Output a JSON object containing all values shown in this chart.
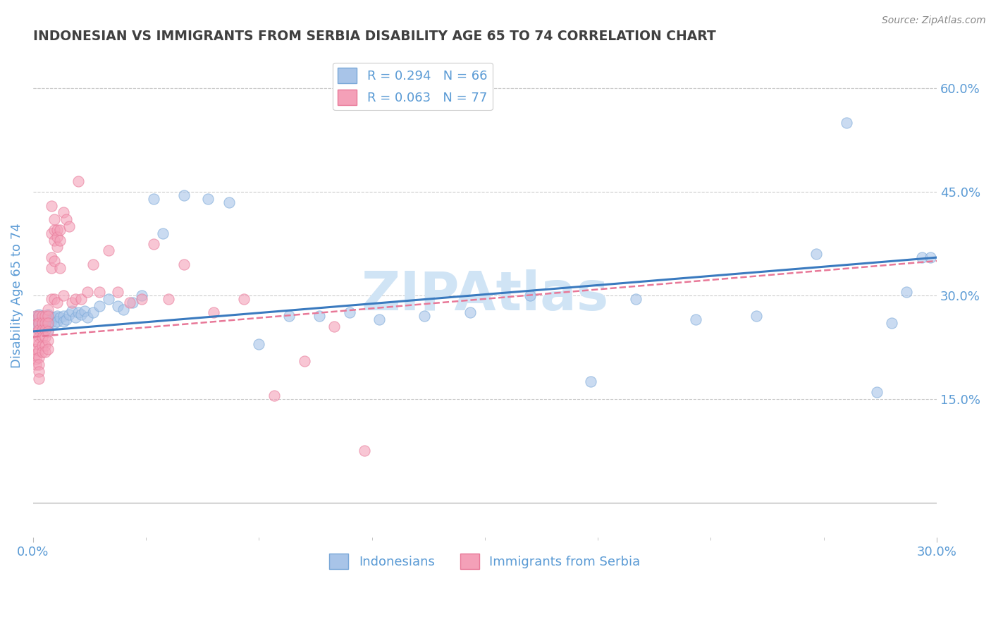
{
  "title": "INDONESIAN VS IMMIGRANTS FROM SERBIA DISABILITY AGE 65 TO 74 CORRELATION CHART",
  "source_text": "Source: ZipAtlas.com",
  "ylabel": "Disability Age 65 to 74",
  "xlim": [
    0.0,
    0.3
  ],
  "ylim": [
    -0.05,
    0.65
  ],
  "ytick_labels_right": [
    "15.0%",
    "30.0%",
    "45.0%",
    "60.0%"
  ],
  "ytick_positions_right": [
    0.15,
    0.3,
    0.45,
    0.6
  ],
  "legend1_label": "R = 0.294   N = 66",
  "legend2_label": "R = 0.063   N = 77",
  "legend_bottom_label1": "Indonesians",
  "legend_bottom_label2": "Immigrants from Serbia",
  "blue_color": "#a8c4e8",
  "pink_color": "#f4a0b8",
  "blue_edge_color": "#7aa8d8",
  "pink_edge_color": "#e87898",
  "blue_line_color": "#3a7abf",
  "pink_line_color": "#e87898",
  "title_color": "#404040",
  "axis_color": "#bbbbbb",
  "text_color": "#5b9bd5",
  "watermark_color": "#d0e4f5",
  "watermark_fontsize": 55,
  "background_color": "#ffffff",
  "grid_color": "#cccccc",
  "indonesian_x": [
    0.001,
    0.001,
    0.001,
    0.002,
    0.002,
    0.002,
    0.002,
    0.003,
    0.003,
    0.003,
    0.003,
    0.004,
    0.004,
    0.004,
    0.005,
    0.005,
    0.005,
    0.005,
    0.006,
    0.006,
    0.007,
    0.007,
    0.008,
    0.008,
    0.009,
    0.01,
    0.01,
    0.011,
    0.012,
    0.013,
    0.014,
    0.015,
    0.016,
    0.017,
    0.018,
    0.02,
    0.022,
    0.025,
    0.028,
    0.03,
    0.033,
    0.036,
    0.04,
    0.043,
    0.05,
    0.058,
    0.065,
    0.075,
    0.085,
    0.095,
    0.105,
    0.115,
    0.13,
    0.145,
    0.165,
    0.185,
    0.2,
    0.22,
    0.24,
    0.26,
    0.27,
    0.28,
    0.285,
    0.29,
    0.295,
    0.298
  ],
  "indonesian_y": [
    0.27,
    0.265,
    0.258,
    0.272,
    0.265,
    0.258,
    0.252,
    0.27,
    0.264,
    0.258,
    0.25,
    0.268,
    0.262,
    0.255,
    0.272,
    0.265,
    0.258,
    0.25,
    0.268,
    0.262,
    0.268,
    0.26,
    0.27,
    0.262,
    0.268,
    0.27,
    0.262,
    0.265,
    0.272,
    0.278,
    0.268,
    0.275,
    0.272,
    0.278,
    0.268,
    0.275,
    0.285,
    0.295,
    0.285,
    0.28,
    0.29,
    0.3,
    0.44,
    0.39,
    0.445,
    0.44,
    0.435,
    0.23,
    0.27,
    0.27,
    0.275,
    0.265,
    0.27,
    0.275,
    0.3,
    0.175,
    0.295,
    0.265,
    0.27,
    0.36,
    0.55,
    0.16,
    0.26,
    0.305,
    0.355,
    0.355
  ],
  "serbian_x": [
    0.001,
    0.001,
    0.001,
    0.001,
    0.001,
    0.001,
    0.001,
    0.001,
    0.002,
    0.002,
    0.002,
    0.002,
    0.002,
    0.002,
    0.002,
    0.002,
    0.002,
    0.002,
    0.003,
    0.003,
    0.003,
    0.003,
    0.003,
    0.003,
    0.004,
    0.004,
    0.004,
    0.004,
    0.004,
    0.004,
    0.005,
    0.005,
    0.005,
    0.005,
    0.005,
    0.005,
    0.006,
    0.006,
    0.006,
    0.006,
    0.006,
    0.007,
    0.007,
    0.007,
    0.007,
    0.007,
    0.008,
    0.008,
    0.008,
    0.008,
    0.009,
    0.009,
    0.009,
    0.01,
    0.01,
    0.011,
    0.012,
    0.013,
    0.014,
    0.015,
    0.016,
    0.018,
    0.02,
    0.022,
    0.025,
    0.028,
    0.032,
    0.036,
    0.04,
    0.045,
    0.05,
    0.06,
    0.07,
    0.08,
    0.09,
    0.1,
    0.11
  ],
  "serbian_y": [
    0.27,
    0.258,
    0.246,
    0.234,
    0.222,
    0.215,
    0.208,
    0.2,
    0.27,
    0.26,
    0.25,
    0.24,
    0.23,
    0.22,
    0.21,
    0.2,
    0.19,
    0.18,
    0.27,
    0.26,
    0.25,
    0.24,
    0.228,
    0.218,
    0.27,
    0.26,
    0.25,
    0.24,
    0.228,
    0.218,
    0.28,
    0.27,
    0.26,
    0.248,
    0.235,
    0.222,
    0.355,
    0.39,
    0.34,
    0.295,
    0.43,
    0.38,
    0.395,
    0.35,
    0.295,
    0.41,
    0.395,
    0.385,
    0.37,
    0.29,
    0.395,
    0.38,
    0.34,
    0.42,
    0.3,
    0.41,
    0.4,
    0.29,
    0.295,
    0.465,
    0.295,
    0.305,
    0.345,
    0.305,
    0.365,
    0.305,
    0.29,
    0.295,
    0.375,
    0.295,
    0.345,
    0.275,
    0.295,
    0.155,
    0.205,
    0.255,
    0.075
  ],
  "blue_trend_x": [
    0.0,
    0.3
  ],
  "blue_trend_y": [
    0.248,
    0.355
  ],
  "pink_trend_x": [
    0.0,
    0.3
  ],
  "pink_trend_y": [
    0.24,
    0.35
  ]
}
